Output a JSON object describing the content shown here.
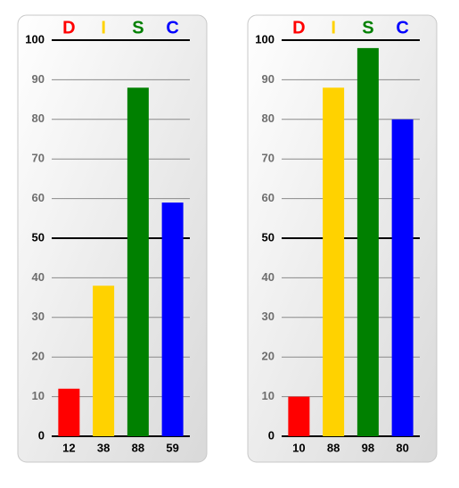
{
  "chart_data": [
    {
      "type": "bar",
      "categories": [
        "D",
        "I",
        "S",
        "C"
      ],
      "values": [
        12,
        38,
        88,
        59
      ],
      "colors": [
        "#ff0000",
        "#ffd200",
        "#008000",
        "#0000ff"
      ],
      "ylim": [
        0,
        100
      ],
      "yticks": [
        0,
        10,
        20,
        30,
        40,
        50,
        60,
        70,
        80,
        90,
        100
      ],
      "grid": true
    },
    {
      "type": "bar",
      "categories": [
        "D",
        "I",
        "S",
        "C"
      ],
      "values": [
        10,
        88,
        98,
        80
      ],
      "colors": [
        "#ff0000",
        "#ffd200",
        "#008000",
        "#0000ff"
      ],
      "ylim": [
        0,
        100
      ],
      "yticks": [
        0,
        10,
        20,
        30,
        40,
        50,
        60,
        70,
        80,
        90,
        100
      ],
      "grid": true
    }
  ]
}
